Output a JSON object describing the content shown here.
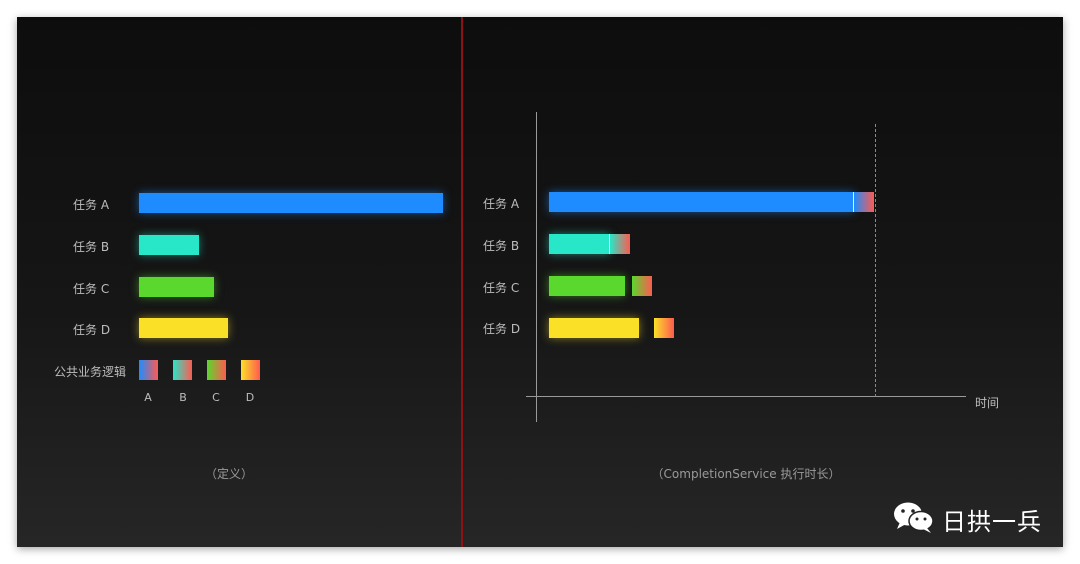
{
  "left": {
    "tasks": [
      {
        "label": "任务 A",
        "color": "#1e8cff"
      },
      {
        "label": "任务 B",
        "color": "#28e6c8"
      },
      {
        "label": "任务 C",
        "color": "#5ad82e"
      },
      {
        "label": "任务 D",
        "color": "#fae128"
      }
    ],
    "common_label": "公共业务逻辑",
    "common_ticks": [
      "A",
      "B",
      "C",
      "D"
    ],
    "caption": "（定义）"
  },
  "right": {
    "tasks": [
      {
        "label": "任务 A"
      },
      {
        "label": "任务 B"
      },
      {
        "label": "任务 C"
      },
      {
        "label": "任务 D"
      }
    ],
    "axis_label": "时间",
    "caption": "（CompletionService 执行时长）"
  },
  "brand": {
    "text": "日拱一兵",
    "icon": "wechat-icon"
  }
}
